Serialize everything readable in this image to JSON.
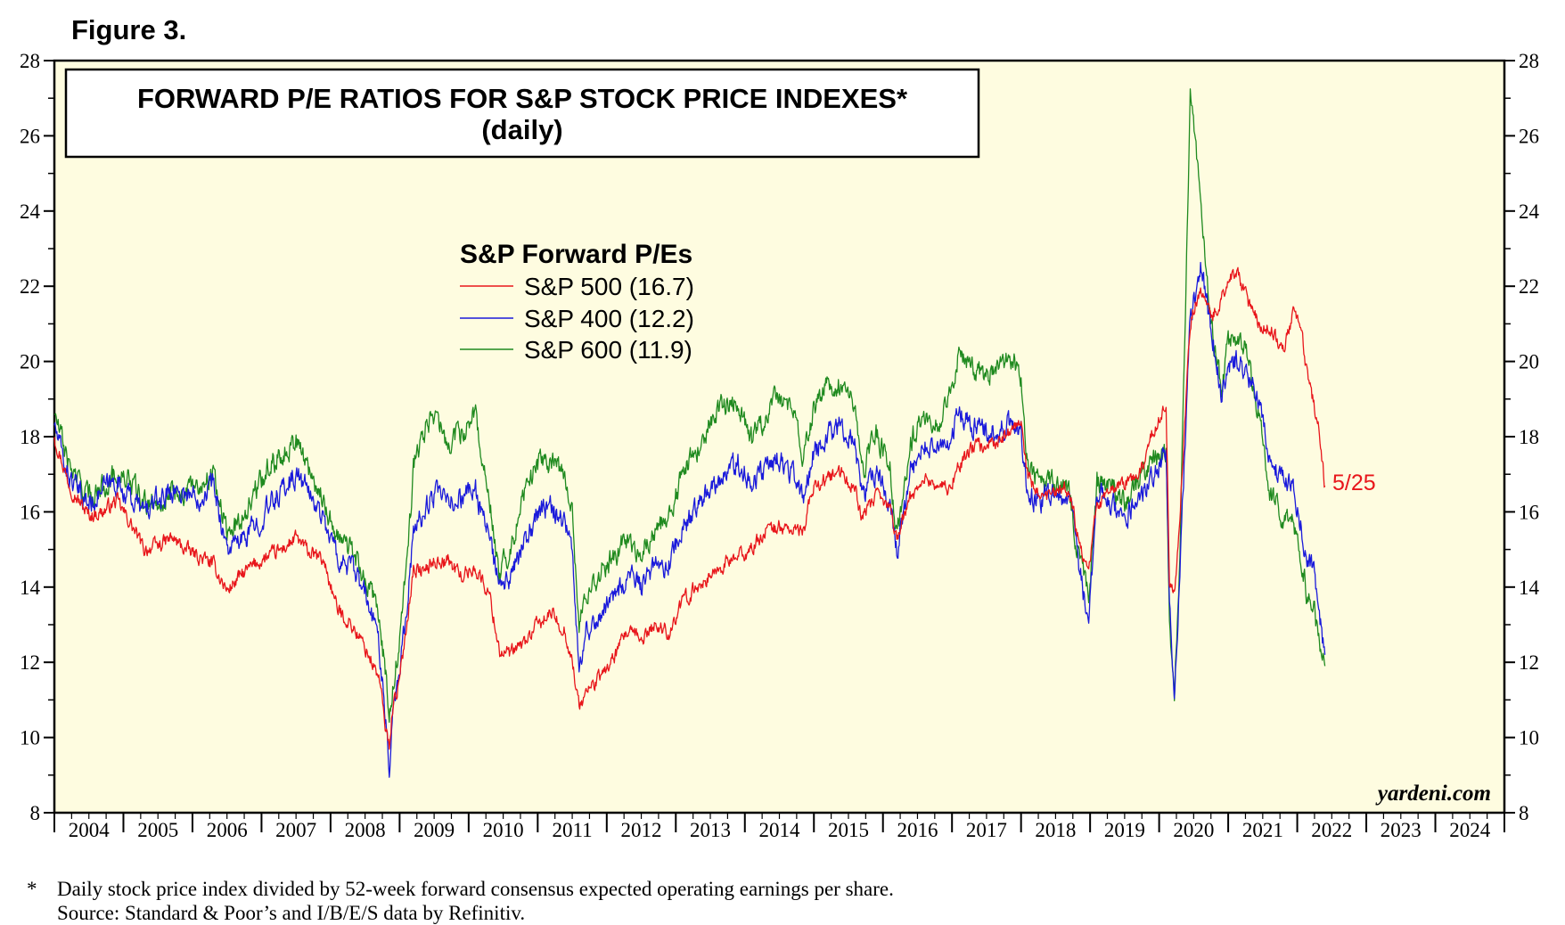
{
  "figure_label": "Figure 3.",
  "chart_data": {
    "type": "line",
    "title": "FORWARD P/E RATIOS FOR S&P STOCK PRICE INDEXES*",
    "subtitle": "(daily)",
    "ylim": [
      8,
      28
    ],
    "y_ticks": [
      "8",
      "10",
      "12",
      "14",
      "16",
      "18",
      "20",
      "22",
      "24",
      "26",
      "28"
    ],
    "x_range": [
      2004,
      2025
    ],
    "x_ticks": [
      "2004",
      "2005",
      "2006",
      "2007",
      "2008",
      "2009",
      "2010",
      "2011",
      "2012",
      "2013",
      "2014",
      "2015",
      "2016",
      "2017",
      "2018",
      "2019",
      "2020",
      "2021",
      "2022",
      "2023",
      "2024"
    ],
    "legend_title": "S&P Forward P/Es",
    "legend_position": "top-left",
    "grid": false,
    "series": [
      {
        "name": "S&P 500 (16.7)",
        "color": "#e8161b",
        "x": [
          2004.0,
          2004.1,
          2004.2,
          2004.35,
          2004.5,
          2004.7,
          2004.9,
          2005.1,
          2005.3,
          2005.5,
          2005.7,
          2005.9,
          2006.1,
          2006.3,
          2006.5,
          2006.7,
          2006.9,
          2007.1,
          2007.3,
          2007.5,
          2007.7,
          2007.9,
          2008.1,
          2008.3,
          2008.5,
          2008.7,
          2008.8,
          2008.85,
          2008.9,
          2009.0,
          2009.1,
          2009.2,
          2009.35,
          2009.5,
          2009.7,
          2009.9,
          2010.1,
          2010.3,
          2010.45,
          2010.6,
          2010.8,
          2011.0,
          2011.2,
          2011.4,
          2011.5,
          2011.6,
          2011.7,
          2011.9,
          2012.1,
          2012.3,
          2012.5,
          2012.7,
          2012.9,
          2013.1,
          2013.3,
          2013.5,
          2013.7,
          2013.9,
          2014.1,
          2014.3,
          2014.5,
          2014.7,
          2014.85,
          2015.0,
          2015.2,
          2015.4,
          2015.6,
          2015.7,
          2015.9,
          2016.1,
          2016.2,
          2016.4,
          2016.6,
          2016.8,
          2016.95,
          2017.1,
          2017.3,
          2017.5,
          2017.7,
          2017.9,
          2018.0,
          2018.1,
          2018.3,
          2018.5,
          2018.7,
          2018.8,
          2018.98,
          2019.1,
          2019.3,
          2019.5,
          2019.7,
          2019.9,
          2020.1,
          2020.15,
          2020.22,
          2020.3,
          2020.45,
          2020.6,
          2020.75,
          2020.9,
          2021.0,
          2021.15,
          2021.3,
          2021.45,
          2021.6,
          2021.8,
          2021.95,
          2022.05,
          2022.15,
          2022.25,
          2022.32,
          2022.4
        ],
        "values": [
          18.0,
          17.4,
          16.8,
          16.3,
          15.9,
          16.0,
          16.3,
          15.7,
          15.0,
          15.1,
          15.3,
          15.0,
          14.8,
          14.6,
          13.9,
          14.3,
          14.6,
          14.8,
          15.0,
          15.3,
          14.9,
          14.7,
          13.4,
          13.0,
          12.4,
          11.6,
          10.2,
          9.8,
          10.8,
          11.5,
          13.0,
          14.5,
          14.4,
          14.7,
          14.7,
          14.3,
          14.5,
          13.8,
          12.3,
          12.2,
          12.5,
          13.0,
          13.3,
          12.8,
          12.0,
          10.8,
          11.2,
          11.6,
          12.1,
          12.8,
          12.6,
          13.0,
          12.8,
          13.6,
          14.0,
          14.3,
          14.6,
          14.8,
          15.0,
          15.5,
          15.6,
          15.5,
          15.5,
          16.7,
          16.9,
          17.0,
          16.6,
          15.8,
          16.4,
          16.1,
          15.3,
          16.4,
          16.9,
          16.7,
          16.6,
          17.2,
          17.7,
          17.8,
          17.9,
          18.2,
          18.3,
          16.9,
          16.3,
          16.5,
          16.6,
          15.6,
          14.4,
          16.2,
          16.5,
          16.8,
          16.9,
          18.1,
          18.8,
          14.2,
          13.7,
          16.0,
          21.0,
          22.0,
          21.1,
          21.7,
          22.2,
          22.3,
          21.5,
          21.0,
          20.9,
          20.3,
          21.3,
          20.9,
          19.6,
          18.8,
          18.2,
          16.7
        ]
      },
      {
        "name": "S&P 400 (12.2)",
        "color": "#1a1adb",
        "x": [
          2004.0,
          2004.1,
          2004.2,
          2004.35,
          2004.5,
          2004.7,
          2004.9,
          2005.1,
          2005.3,
          2005.5,
          2005.7,
          2005.9,
          2006.1,
          2006.3,
          2006.5,
          2006.7,
          2006.9,
          2007.1,
          2007.3,
          2007.5,
          2007.7,
          2007.9,
          2008.1,
          2008.3,
          2008.5,
          2008.7,
          2008.8,
          2008.85,
          2008.9,
          2009.0,
          2009.1,
          2009.2,
          2009.35,
          2009.5,
          2009.7,
          2009.9,
          2010.1,
          2010.3,
          2010.45,
          2010.6,
          2010.8,
          2011.0,
          2011.2,
          2011.4,
          2011.5,
          2011.6,
          2011.7,
          2011.9,
          2012.1,
          2012.3,
          2012.5,
          2012.7,
          2012.9,
          2013.1,
          2013.3,
          2013.5,
          2013.7,
          2013.9,
          2014.1,
          2014.3,
          2014.5,
          2014.7,
          2014.85,
          2015.0,
          2015.2,
          2015.4,
          2015.6,
          2015.7,
          2015.9,
          2016.1,
          2016.2,
          2016.4,
          2016.6,
          2016.8,
          2016.95,
          2017.1,
          2017.3,
          2017.5,
          2017.7,
          2017.9,
          2018.0,
          2018.1,
          2018.3,
          2018.5,
          2018.7,
          2018.8,
          2018.98,
          2019.1,
          2019.3,
          2019.5,
          2019.7,
          2019.9,
          2020.1,
          2020.15,
          2020.22,
          2020.3,
          2020.45,
          2020.6,
          2020.75,
          2020.9,
          2021.0,
          2021.15,
          2021.3,
          2021.45,
          2021.6,
          2021.8,
          2021.95,
          2022.05,
          2022.15,
          2022.25,
          2022.32,
          2022.4
        ],
        "values": [
          18.3,
          17.6,
          17.0,
          16.5,
          16.2,
          16.6,
          16.8,
          16.4,
          16.0,
          16.3,
          16.6,
          16.5,
          16.4,
          16.8,
          15.0,
          15.2,
          15.6,
          16.1,
          16.6,
          17.0,
          16.5,
          15.8,
          14.8,
          14.5,
          13.8,
          12.6,
          10.5,
          9.2,
          10.8,
          11.8,
          13.5,
          15.4,
          16.0,
          16.5,
          16.2,
          16.4,
          16.6,
          15.3,
          13.9,
          14.2,
          15.1,
          16.0,
          16.1,
          15.8,
          14.8,
          12.0,
          12.8,
          13.3,
          13.8,
          14.3,
          14.0,
          14.5,
          14.6,
          15.6,
          16.0,
          16.7,
          17.0,
          17.3,
          16.8,
          17.2,
          17.4,
          17.0,
          16.4,
          17.6,
          18.1,
          18.3,
          17.8,
          16.3,
          17.1,
          16.2,
          15.0,
          17.1,
          17.7,
          17.6,
          17.9,
          18.6,
          18.3,
          18.1,
          18.2,
          18.4,
          18.1,
          16.4,
          16.3,
          16.5,
          16.4,
          15.0,
          13.0,
          16.4,
          16.3,
          15.8,
          16.4,
          17.0,
          17.6,
          13.4,
          11.0,
          14.5,
          21.0,
          22.5,
          20.9,
          19.2,
          19.8,
          20.1,
          19.6,
          18.9,
          17.3,
          16.8,
          16.7,
          15.7,
          14.7,
          14.3,
          13.2,
          12.2
        ]
      },
      {
        "name": "S&P 600 (11.9)",
        "color": "#1f8a1f",
        "x": [
          2004.0,
          2004.1,
          2004.2,
          2004.35,
          2004.5,
          2004.7,
          2004.9,
          2005.1,
          2005.3,
          2005.5,
          2005.7,
          2005.9,
          2006.1,
          2006.3,
          2006.5,
          2006.7,
          2006.9,
          2007.1,
          2007.3,
          2007.5,
          2007.7,
          2007.9,
          2008.1,
          2008.3,
          2008.5,
          2008.7,
          2008.8,
          2008.85,
          2008.9,
          2009.0,
          2009.1,
          2009.2,
          2009.35,
          2009.5,
          2009.7,
          2009.9,
          2010.1,
          2010.3,
          2010.45,
          2010.6,
          2010.8,
          2011.0,
          2011.2,
          2011.4,
          2011.5,
          2011.6,
          2011.7,
          2011.9,
          2012.1,
          2012.3,
          2012.5,
          2012.7,
          2012.9,
          2013.1,
          2013.3,
          2013.5,
          2013.7,
          2013.9,
          2014.1,
          2014.3,
          2014.5,
          2014.7,
          2014.85,
          2015.0,
          2015.2,
          2015.4,
          2015.6,
          2015.7,
          2015.9,
          2016.1,
          2016.2,
          2016.4,
          2016.6,
          2016.8,
          2016.95,
          2017.1,
          2017.3,
          2017.5,
          2017.7,
          2017.9,
          2018.0,
          2018.1,
          2018.3,
          2018.5,
          2018.7,
          2018.8,
          2018.98,
          2019.1,
          2019.3,
          2019.5,
          2019.7,
          2019.9,
          2020.1,
          2020.15,
          2020.22,
          2020.3,
          2020.45,
          2020.6,
          2020.75,
          2020.9,
          2021.0,
          2021.15,
          2021.3,
          2021.45,
          2021.6,
          2021.8,
          2021.95,
          2022.05,
          2022.15,
          2022.25,
          2022.32,
          2022.4
        ],
        "values": [
          18.6,
          18.0,
          17.3,
          16.8,
          16.4,
          16.7,
          17.0,
          16.8,
          16.2,
          16.2,
          16.6,
          16.5,
          16.7,
          17.1,
          15.4,
          15.8,
          16.5,
          17.2,
          17.6,
          17.9,
          17.1,
          16.3,
          15.3,
          15.0,
          14.2,
          13.3,
          11.6,
          10.5,
          11.2,
          12.6,
          14.5,
          17.2,
          18.1,
          18.6,
          17.8,
          18.1,
          18.6,
          16.3,
          14.4,
          15.0,
          16.5,
          17.3,
          17.4,
          17.0,
          15.8,
          12.9,
          13.8,
          14.4,
          14.8,
          15.3,
          14.9,
          15.6,
          15.8,
          17.0,
          17.6,
          18.4,
          18.9,
          18.8,
          17.9,
          18.6,
          19.1,
          18.6,
          17.5,
          18.8,
          19.3,
          19.5,
          18.9,
          17.1,
          18.1,
          17.3,
          15.3,
          17.9,
          18.6,
          18.4,
          19.0,
          20.2,
          19.8,
          19.6,
          19.9,
          20.1,
          19.4,
          17.1,
          16.8,
          16.8,
          16.6,
          15.2,
          13.6,
          16.8,
          16.7,
          16.2,
          16.8,
          17.4,
          17.6,
          13.1,
          10.9,
          15.0,
          27.0,
          24.5,
          21.0,
          19.3,
          20.5,
          20.7,
          20.1,
          18.4,
          16.5,
          15.9,
          15.6,
          14.8,
          13.7,
          13.4,
          12.5,
          11.9
        ]
      }
    ],
    "annotations": {
      "last_date": "5/25",
      "watermark": "yardeni.com"
    }
  },
  "footnote": {
    "marker": "*",
    "line1": "Daily stock price index divided by 52-week forward consensus expected operating earnings per share.",
    "line2": "Source: Standard & Poor’s and I/B/E/S data by Refinitiv."
  }
}
